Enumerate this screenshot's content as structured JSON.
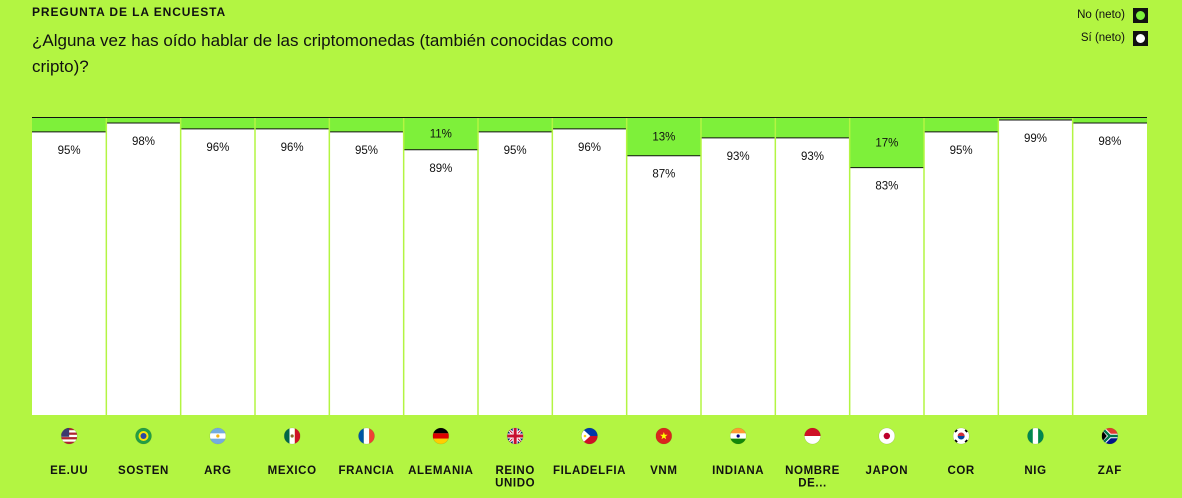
{
  "header": {
    "eyebrow": "PREGUNTA DE LA ENCUESTA",
    "question": "¿Alguna vez has oído hablar de las criptomonedas (también conocidas como cripto)?"
  },
  "legend": {
    "items": [
      {
        "label": "No (neto)",
        "color": "#7ef03a"
      },
      {
        "label": "Sí (neto)",
        "color": "#ffffff"
      }
    ]
  },
  "chart_data": {
    "type": "bar",
    "stacked": true,
    "ylim": [
      0,
      100
    ],
    "categories": [
      "EE.UU",
      "SOSTEN",
      "ARG",
      "MEXICO",
      "FRANCIA",
      "ALEMANIA",
      "REINO UNIDO",
      "FILADELFIA",
      "VNM",
      "INDIANA",
      "NOMBRE DE...",
      "JAPON",
      "COR",
      "NIG",
      "ZAF"
    ],
    "flags": [
      "us-flag-icon",
      "brazil-flag-icon",
      "argentina-flag-icon",
      "mexico-flag-icon",
      "france-flag-icon",
      "germany-flag-icon",
      "uk-flag-icon",
      "philippines-flag-icon",
      "vietnam-flag-icon",
      "india-flag-icon",
      "indonesia-flag-icon",
      "japan-flag-icon",
      "korea-flag-icon",
      "nigeria-flag-icon",
      "south-africa-flag-icon"
    ],
    "series": [
      {
        "name": "No (neto)",
        "color": "#7ef03a",
        "values": [
          5,
          2,
          4,
          4,
          5,
          11,
          5,
          4,
          13,
          7,
          7,
          17,
          5,
          1,
          2
        ],
        "labels": [
          "",
          "",
          "",
          "",
          "",
          "11%",
          "",
          "",
          "13%",
          "",
          "",
          "17%",
          "",
          "",
          ""
        ]
      },
      {
        "name": "Sí (neto)",
        "color": "#ffffff",
        "values": [
          95,
          98,
          96,
          96,
          95,
          89,
          95,
          96,
          87,
          93,
          93,
          83,
          95,
          99,
          98
        ],
        "labels": [
          "95%",
          "98%",
          "96%",
          "96%",
          "95%",
          "89%",
          "95%",
          "96%",
          "87%",
          "93%",
          "93%",
          "83%",
          "95%",
          "99%",
          "98%"
        ]
      }
    ]
  }
}
